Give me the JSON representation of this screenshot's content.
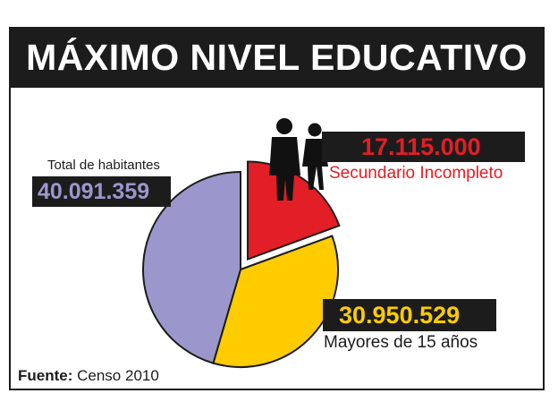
{
  "title": "MÁXIMO NIVEL EDUCATIVO",
  "labels": {
    "total": {
      "caption": "Total de habitantes",
      "value": "40.091.359"
    },
    "secundario": {
      "caption": "Secundario Incompleto",
      "value": "17.115.000"
    },
    "mayores": {
      "caption": "Mayores de 15 años",
      "value": "30.950.529"
    }
  },
  "source": {
    "prefix": "Fuente:",
    "text": "Censo 2010"
  },
  "icons": [
    "man-silhouette-icon",
    "woman-silhouette-icon"
  ],
  "colors": {
    "title_bg": "#1c1c1c",
    "total": "#9b97cc",
    "mayores": "#ffcc00",
    "secundario": "#e21e26",
    "text": "#1c1c1c"
  },
  "chart_data": {
    "type": "pie",
    "title": "MÁXIMO NIVEL EDUCATIVO",
    "unit": "habitantes",
    "slices": [
      {
        "name": "Total de habitantes",
        "value": 40091359,
        "color": "#9b97cc"
      },
      {
        "name": "Mayores de 15 años",
        "value": 30950529,
        "color": "#ffcc00"
      },
      {
        "name": "Secundario Incompleto",
        "value": 17115000,
        "color": "#e21e26",
        "exploded": true
      }
    ]
  }
}
